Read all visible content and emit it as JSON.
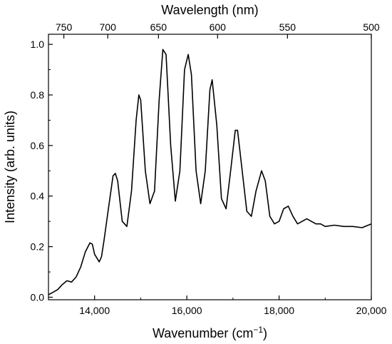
{
  "chart_data": {
    "type": "line",
    "xlabel": "Wavenumber (cm",
    "xlabel_sup": "−1",
    "xlabel_close": ")",
    "top_xlabel": "Wavelength (nm)",
    "ylabel": "Intensity (arb. units)",
    "xlim": [
      13000,
      20000
    ],
    "ylim": [
      -0.01,
      1.04
    ],
    "x_ticks": [
      14000,
      16000,
      18000,
      20000
    ],
    "x_tick_labels": [
      "14,000",
      "16,000",
      "18,000",
      "20,000"
    ],
    "y_ticks": [
      0.0,
      0.2,
      0.4,
      0.6,
      0.8,
      1.0
    ],
    "y_tick_labels": [
      "0.0",
      "0.2",
      "0.4",
      "0.6",
      "0.8",
      "1.0"
    ],
    "top_ticks_nm": [
      750,
      700,
      650,
      600,
      550,
      500
    ],
    "top_tick_labels": [
      "750",
      "700",
      "650",
      "600",
      "550",
      "500"
    ],
    "grid": false,
    "series": [
      {
        "x": [
          13000,
          13100,
          13200,
          13300,
          13400,
          13500,
          13600,
          13700,
          13800,
          13900,
          13950,
          14000,
          14100,
          14150,
          14200,
          14300,
          14400,
          14450,
          14500,
          14600,
          14700,
          14800,
          14900,
          14960,
          15000,
          15100,
          15200,
          15300,
          15400,
          15480,
          15550,
          15650,
          15750,
          15850,
          15950,
          16030,
          16100,
          16200,
          16300,
          16400,
          16500,
          16550,
          16650,
          16750,
          16850,
          16950,
          17050,
          17100,
          17200,
          17300,
          17400,
          17500,
          17620,
          17700,
          17800,
          17900,
          18000,
          18100,
          18200,
          18300,
          18400,
          18500,
          18600,
          18700,
          18800,
          18900,
          19000,
          19200,
          19400,
          19600,
          19800,
          20000
        ],
        "y": [
          0.01,
          0.02,
          0.03,
          0.05,
          0.065,
          0.06,
          0.08,
          0.12,
          0.18,
          0.215,
          0.21,
          0.17,
          0.14,
          0.16,
          0.22,
          0.35,
          0.48,
          0.49,
          0.46,
          0.3,
          0.28,
          0.42,
          0.7,
          0.8,
          0.78,
          0.5,
          0.37,
          0.42,
          0.78,
          0.98,
          0.96,
          0.6,
          0.38,
          0.5,
          0.9,
          0.96,
          0.88,
          0.5,
          0.37,
          0.5,
          0.82,
          0.86,
          0.68,
          0.39,
          0.35,
          0.5,
          0.66,
          0.66,
          0.5,
          0.34,
          0.32,
          0.42,
          0.5,
          0.46,
          0.32,
          0.29,
          0.3,
          0.35,
          0.36,
          0.32,
          0.29,
          0.3,
          0.31,
          0.3,
          0.29,
          0.29,
          0.28,
          0.285,
          0.28,
          0.28,
          0.275,
          0.29
        ]
      }
    ]
  }
}
